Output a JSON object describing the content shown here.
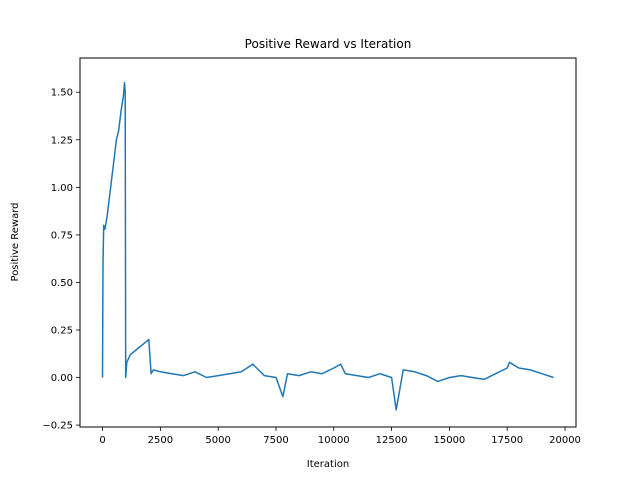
{
  "chart_data": {
    "type": "line",
    "title": "Positive Reward vs Iteration",
    "xlabel": "Iteration",
    "ylabel": "Positive Reward",
    "xlim": [
      -975,
      20475
    ],
    "ylim": [
      -0.26,
      1.68
    ],
    "xticks": [
      0,
      2500,
      5000,
      7500,
      10000,
      12500,
      15000,
      17500,
      20000
    ],
    "xtick_labels": [
      "0",
      "2500",
      "5000",
      "7500",
      "10000",
      "12500",
      "15000",
      "17500",
      "20000"
    ],
    "yticks": [
      -0.25,
      0.0,
      0.25,
      0.5,
      0.75,
      1.0,
      1.25,
      1.5
    ],
    "ytick_labels": [
      "−0.25",
      "0.00",
      "0.25",
      "0.50",
      "0.75",
      "1.00",
      "1.25",
      "1.50"
    ],
    "grid": false,
    "legend": "none",
    "series": [
      {
        "color": "#1f77b4",
        "x": [
          0,
          20,
          50,
          100,
          200,
          300,
          400,
          500,
          600,
          700,
          800,
          900,
          950,
          980,
          1000,
          1050,
          1200,
          1500,
          1800,
          2000,
          2100,
          2200,
          2500,
          3000,
          3500,
          4000,
          4500,
          5000,
          5500,
          6000,
          6500,
          7000,
          7500,
          7800,
          8000,
          8500,
          9000,
          9500,
          10000,
          10300,
          10500,
          11000,
          11500,
          12000,
          12500,
          12700,
          13000,
          13500,
          14000,
          14500,
          15000,
          15500,
          16000,
          16500,
          17000,
          17500,
          17600,
          18000,
          18500,
          19000,
          19500
        ],
        "y": [
          0.0,
          0.6,
          0.8,
          0.78,
          0.85,
          0.95,
          1.05,
          1.15,
          1.25,
          1.3,
          1.4,
          1.48,
          1.55,
          1.5,
          0.0,
          0.08,
          0.12,
          0.15,
          0.18,
          0.2,
          0.02,
          0.04,
          0.03,
          0.02,
          0.01,
          0.03,
          0.0,
          0.01,
          0.02,
          0.03,
          0.07,
          0.01,
          0.0,
          -0.1,
          0.02,
          0.01,
          0.03,
          0.02,
          0.05,
          0.07,
          0.02,
          0.01,
          0.0,
          0.02,
          0.0,
          -0.17,
          0.04,
          0.03,
          0.01,
          -0.02,
          0.0,
          0.01,
          0.0,
          -0.01,
          0.02,
          0.05,
          0.08,
          0.05,
          0.04,
          0.02,
          0.0
        ]
      }
    ]
  }
}
